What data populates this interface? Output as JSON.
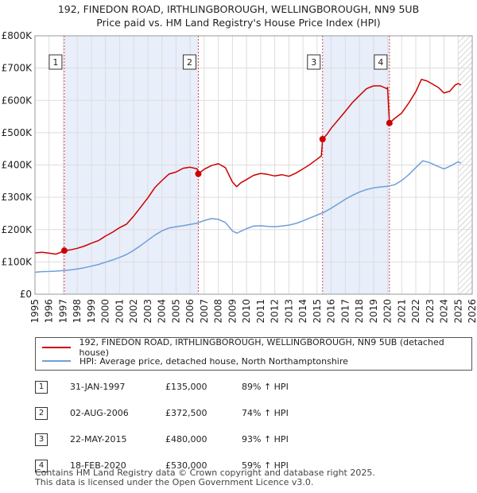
{
  "chart_data": {
    "type": "line",
    "title": "192, FINEDON ROAD, IRTHLINGBOROUGH, WELLINGBOROUGH, NN9 5UB",
    "subtitle": "Price paid vs. HM Land Registry's House Price Index (HPI)",
    "xlim": [
      1995,
      2026
    ],
    "ylim": [
      0,
      800000
    ],
    "x_ticks": [
      "1995",
      "1996",
      "1997",
      "1998",
      "1999",
      "2000",
      "2001",
      "2002",
      "2003",
      "2004",
      "2005",
      "2006",
      "2007",
      "2008",
      "2009",
      "2010",
      "2011",
      "2012",
      "2013",
      "2014",
      "2015",
      "2016",
      "2017",
      "2018",
      "2019",
      "2020",
      "2021",
      "2022",
      "2023",
      "2024",
      "2025",
      "2026"
    ],
    "y_ticks": [
      {
        "value": 0,
        "label": "£0"
      },
      {
        "value": 100000,
        "label": "£100K"
      },
      {
        "value": 200000,
        "label": "£200K"
      },
      {
        "value": 300000,
        "label": "£300K"
      },
      {
        "value": 400000,
        "label": "£400K"
      },
      {
        "value": 500000,
        "label": "£500K"
      },
      {
        "value": 600000,
        "label": "£600K"
      },
      {
        "value": 700000,
        "label": "£700K"
      },
      {
        "value": 800000,
        "label": "£800K"
      }
    ],
    "grid": true,
    "shaded_ranges": [
      [
        1997.08,
        2006.58
      ],
      [
        2015.39,
        2020.13
      ]
    ],
    "future_hatch_from": 2025.0,
    "series": [
      {
        "name": "192, FINEDON ROAD, IRTHLINGBOROUGH, WELLINGBOROUGH, NN9 5UB (detached house)",
        "color": "#cc0000",
        "points": [
          [
            1995.0,
            128000
          ],
          [
            1995.5,
            130000
          ],
          [
            1996.0,
            127000
          ],
          [
            1996.5,
            124000
          ],
          [
            1997.0,
            133000
          ],
          [
            1997.08,
            135000
          ],
          [
            1997.5,
            137000
          ],
          [
            1998.0,
            142000
          ],
          [
            1998.5,
            149000
          ],
          [
            1999.0,
            158000
          ],
          [
            1999.5,
            166000
          ],
          [
            2000.0,
            180000
          ],
          [
            2000.5,
            192000
          ],
          [
            2001.0,
            206000
          ],
          [
            2001.5,
            217000
          ],
          [
            2002.0,
            242000
          ],
          [
            2002.5,
            270000
          ],
          [
            2003.0,
            298000
          ],
          [
            2003.5,
            330000
          ],
          [
            2004.0,
            352000
          ],
          [
            2004.5,
            372000
          ],
          [
            2005.0,
            378000
          ],
          [
            2005.5,
            390000
          ],
          [
            2006.0,
            393000
          ],
          [
            2006.5,
            388000
          ],
          [
            2006.58,
            372500
          ],
          [
            2007.0,
            387000
          ],
          [
            2007.5,
            398000
          ],
          [
            2008.0,
            404000
          ],
          [
            2008.5,
            392000
          ],
          [
            2009.0,
            347000
          ],
          [
            2009.3,
            333000
          ],
          [
            2009.6,
            345000
          ],
          [
            2010.0,
            355000
          ],
          [
            2010.5,
            368000
          ],
          [
            2011.0,
            374000
          ],
          [
            2011.5,
            371000
          ],
          [
            2012.0,
            366000
          ],
          [
            2012.5,
            370000
          ],
          [
            2013.0,
            365000
          ],
          [
            2013.5,
            375000
          ],
          [
            2014.0,
            388000
          ],
          [
            2014.5,
            402000
          ],
          [
            2015.0,
            418000
          ],
          [
            2015.3,
            428000
          ],
          [
            2015.39,
            480000
          ],
          [
            2015.7,
            495000
          ],
          [
            2016.0,
            514000
          ],
          [
            2016.5,
            540000
          ],
          [
            2017.0,
            566000
          ],
          [
            2017.5,
            593000
          ],
          [
            2018.0,
            615000
          ],
          [
            2018.5,
            636000
          ],
          [
            2019.0,
            645000
          ],
          [
            2019.5,
            645000
          ],
          [
            2019.95,
            636000
          ],
          [
            2020.0,
            640000
          ],
          [
            2020.13,
            530000
          ],
          [
            2020.5,
            544000
          ],
          [
            2021.0,
            561000
          ],
          [
            2021.5,
            592000
          ],
          [
            2022.0,
            627000
          ],
          [
            2022.4,
            665000
          ],
          [
            2022.8,
            660000
          ],
          [
            2023.2,
            650000
          ],
          [
            2023.6,
            640000
          ],
          [
            2024.0,
            623000
          ],
          [
            2024.4,
            628000
          ],
          [
            2024.8,
            648000
          ],
          [
            2025.0,
            652000
          ],
          [
            2025.2,
            648000
          ]
        ]
      },
      {
        "name": "HPI: Average price, detached house, North Northamptonshire",
        "color": "#6f9fd8",
        "points": [
          [
            1995.0,
            68000
          ],
          [
            1995.5,
            70000
          ],
          [
            1996.0,
            70500
          ],
          [
            1996.5,
            71500
          ],
          [
            1997.0,
            73000
          ],
          [
            1997.5,
            75000
          ],
          [
            1998.0,
            78000
          ],
          [
            1998.5,
            82000
          ],
          [
            1999.0,
            87000
          ],
          [
            1999.5,
            92000
          ],
          [
            2000.0,
            99000
          ],
          [
            2000.5,
            106000
          ],
          [
            2001.0,
            114000
          ],
          [
            2001.5,
            123000
          ],
          [
            2002.0,
            136000
          ],
          [
            2002.5,
            151000
          ],
          [
            2003.0,
            167000
          ],
          [
            2003.5,
            183000
          ],
          [
            2004.0,
            196000
          ],
          [
            2004.5,
            205000
          ],
          [
            2005.0,
            209000
          ],
          [
            2005.5,
            212000
          ],
          [
            2006.0,
            216000
          ],
          [
            2006.5,
            220000
          ],
          [
            2007.0,
            228000
          ],
          [
            2007.5,
            234000
          ],
          [
            2008.0,
            232000
          ],
          [
            2008.5,
            222000
          ],
          [
            2009.0,
            196000
          ],
          [
            2009.3,
            189000
          ],
          [
            2009.6,
            195000
          ],
          [
            2010.0,
            203000
          ],
          [
            2010.5,
            211000
          ],
          [
            2011.0,
            212000
          ],
          [
            2011.5,
            210000
          ],
          [
            2012.0,
            209000
          ],
          [
            2012.5,
            211000
          ],
          [
            2013.0,
            214000
          ],
          [
            2013.5,
            219000
          ],
          [
            2014.0,
            227000
          ],
          [
            2014.5,
            236000
          ],
          [
            2015.0,
            245000
          ],
          [
            2015.5,
            254000
          ],
          [
            2016.0,
            266000
          ],
          [
            2016.5,
            280000
          ],
          [
            2017.0,
            294000
          ],
          [
            2017.5,
            306000
          ],
          [
            2018.0,
            316000
          ],
          [
            2018.5,
            324000
          ],
          [
            2019.0,
            329000
          ],
          [
            2019.5,
            332000
          ],
          [
            2020.0,
            334000
          ],
          [
            2020.5,
            339000
          ],
          [
            2021.0,
            352000
          ],
          [
            2021.5,
            370000
          ],
          [
            2022.0,
            392000
          ],
          [
            2022.5,
            413000
          ],
          [
            2023.0,
            407000
          ],
          [
            2023.5,
            397000
          ],
          [
            2024.0,
            388000
          ],
          [
            2024.5,
            398000
          ],
          [
            2025.0,
            410000
          ],
          [
            2025.2,
            406000
          ]
        ]
      }
    ],
    "sale_markers": [
      {
        "label": "1",
        "x": 1997.08,
        "y": 135000
      },
      {
        "label": "2",
        "x": 2006.58,
        "y": 372500
      },
      {
        "label": "3",
        "x": 2015.39,
        "y": 480000
      },
      {
        "label": "4",
        "x": 2020.13,
        "y": 530000
      }
    ]
  },
  "legend": {
    "property": "192, FINEDON ROAD, IRTHLINGBOROUGH, WELLINGBOROUGH, NN9 5UB (detached house)",
    "hpi": "HPI: Average price, detached house, North Northamptonshire"
  },
  "sales": [
    {
      "num": "1",
      "date": "31-JAN-1997",
      "price": "£135,000",
      "hpi": "89% ↑ HPI"
    },
    {
      "num": "2",
      "date": "02-AUG-2006",
      "price": "£372,500",
      "hpi": "74% ↑ HPI"
    },
    {
      "num": "3",
      "date": "22-MAY-2015",
      "price": "£480,000",
      "hpi": "93% ↑ HPI"
    },
    {
      "num": "4",
      "date": "18-FEB-2020",
      "price": "£530,000",
      "hpi": "59% ↑ HPI"
    }
  ],
  "footer": {
    "line1": "Contains HM Land Registry data © Crown copyright and database right 2025.",
    "line2": "This data is licensed under the Open Government Licence v3.0."
  }
}
